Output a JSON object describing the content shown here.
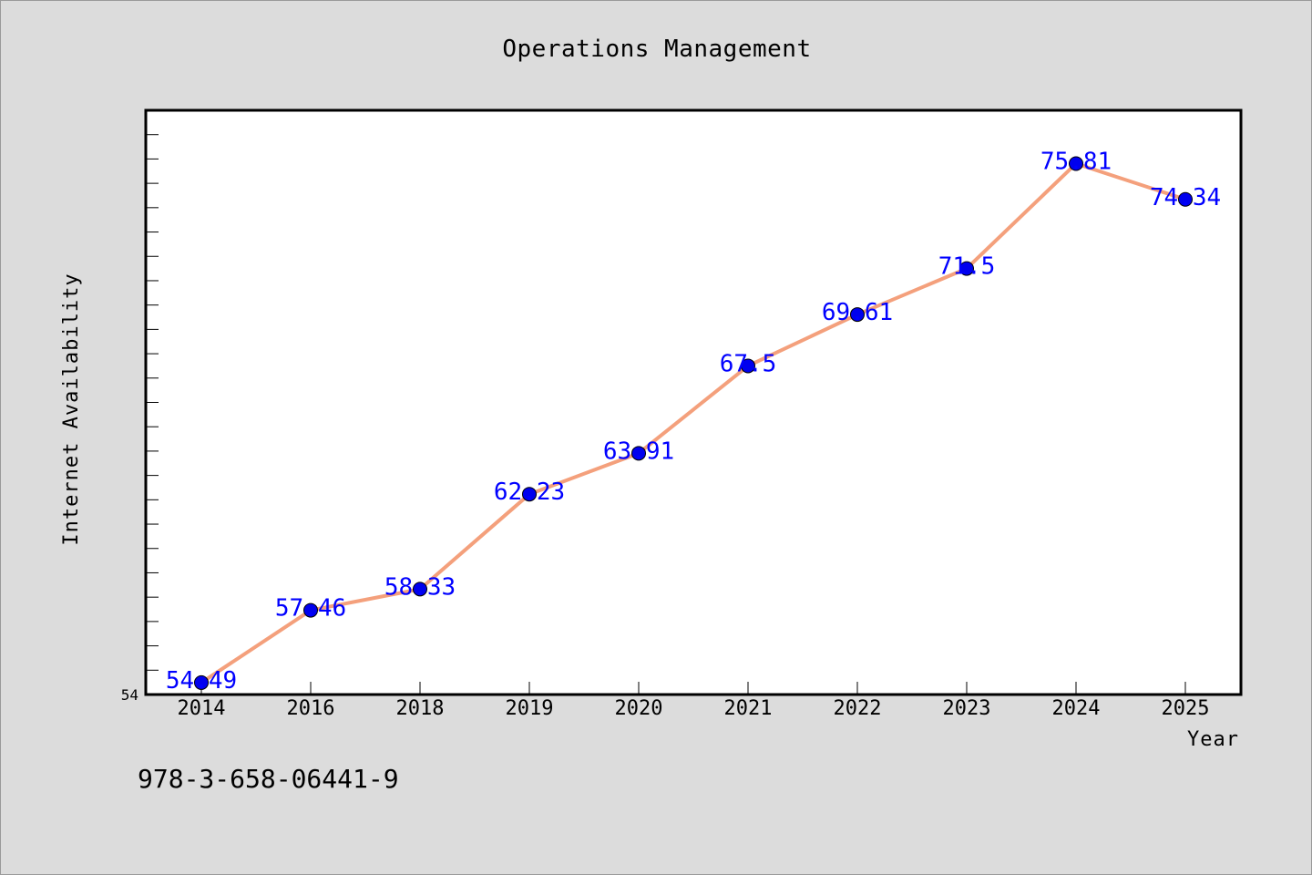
{
  "chart_data": {
    "type": "line",
    "title": "Operations Management",
    "xlabel": "Year",
    "ylabel": "Internet Availability",
    "categories": [
      "2014",
      "2016",
      "2018",
      "2019",
      "2020",
      "2021",
      "2022",
      "2023",
      "2024",
      "2025"
    ],
    "series": [
      {
        "values": [
          54.49,
          57.46,
          58.33,
          62.23,
          63.91,
          67.5,
          69.61,
          71.5,
          75.81,
          74.34
        ],
        "data_labels": [
          "54.49",
          "57.46",
          "58.33",
          "62.23",
          "63.91",
          "67.5",
          "69.61",
          "71.5",
          "75.81",
          "74.34"
        ]
      }
    ],
    "ylim": [
      54,
      78
    ],
    "y_tick_labels": [
      "54"
    ],
    "y_minor_tick_step": 1,
    "grid": false,
    "line_color": "#f4a07c",
    "marker_color": "#0000ee",
    "label_color": "#0000ff",
    "background_color": "#dcdcdc",
    "plot_background_color": "#ffffff"
  },
  "footer": {
    "isbn": "978-3-658-06441-9"
  }
}
